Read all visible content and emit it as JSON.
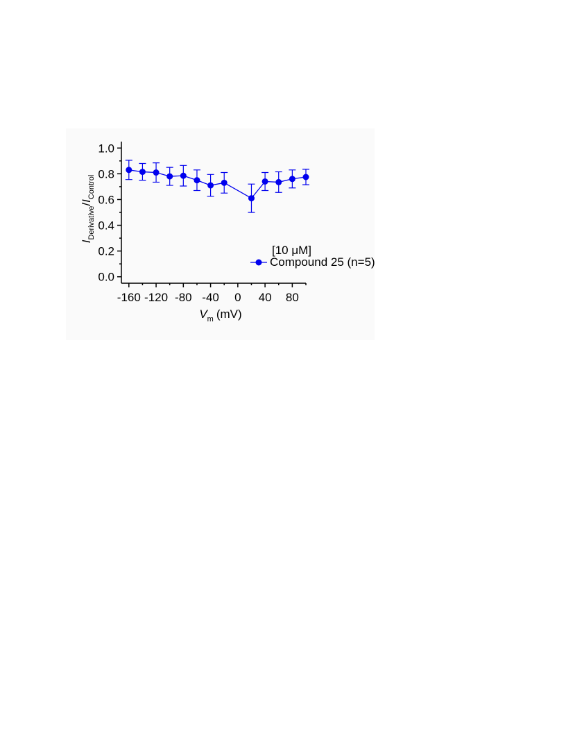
{
  "chart_data": {
    "type": "line",
    "x_label": {
      "main": "V",
      "sub": "m",
      "unit": "(mV)"
    },
    "y_label": {
      "main1": "I",
      "sub1": "Derivative",
      "slash": "/",
      "main2": "I",
      "sub2": "Control"
    },
    "x": [
      -160,
      -140,
      -120,
      -100,
      -80,
      -60,
      -40,
      -20,
      20,
      40,
      60,
      80,
      100
    ],
    "series": [
      {
        "name": "Compound 25 (n=5)",
        "color": "#0000ee",
        "values": [
          0.83,
          0.815,
          0.81,
          0.78,
          0.785,
          0.75,
          0.71,
          0.73,
          0.61,
          0.74,
          0.735,
          0.76,
          0.775
        ],
        "errors": [
          0.075,
          0.065,
          0.075,
          0.07,
          0.08,
          0.08,
          0.085,
          0.08,
          0.11,
          0.07,
          0.08,
          0.07,
          0.06
        ]
      }
    ],
    "legend_title": "[10 μM]",
    "legend": "lower right",
    "xlim": [
      -171,
      100
    ],
    "xticks": [
      -160,
      -120,
      -80,
      -40,
      0,
      40,
      80
    ],
    "xticks_minor": [
      -140,
      -100,
      -60,
      -20,
      20,
      60,
      100
    ],
    "ylim": [
      -0.05,
      1.05
    ],
    "yticks": [
      {
        "value": 0,
        "label": "0.0"
      },
      0.2,
      0.4,
      0.6,
      0.8,
      {
        "value": 1,
        "label": "1.0"
      }
    ],
    "yticks_minor": [
      0.1,
      0.3,
      0.5,
      0.7,
      0.9
    ]
  }
}
